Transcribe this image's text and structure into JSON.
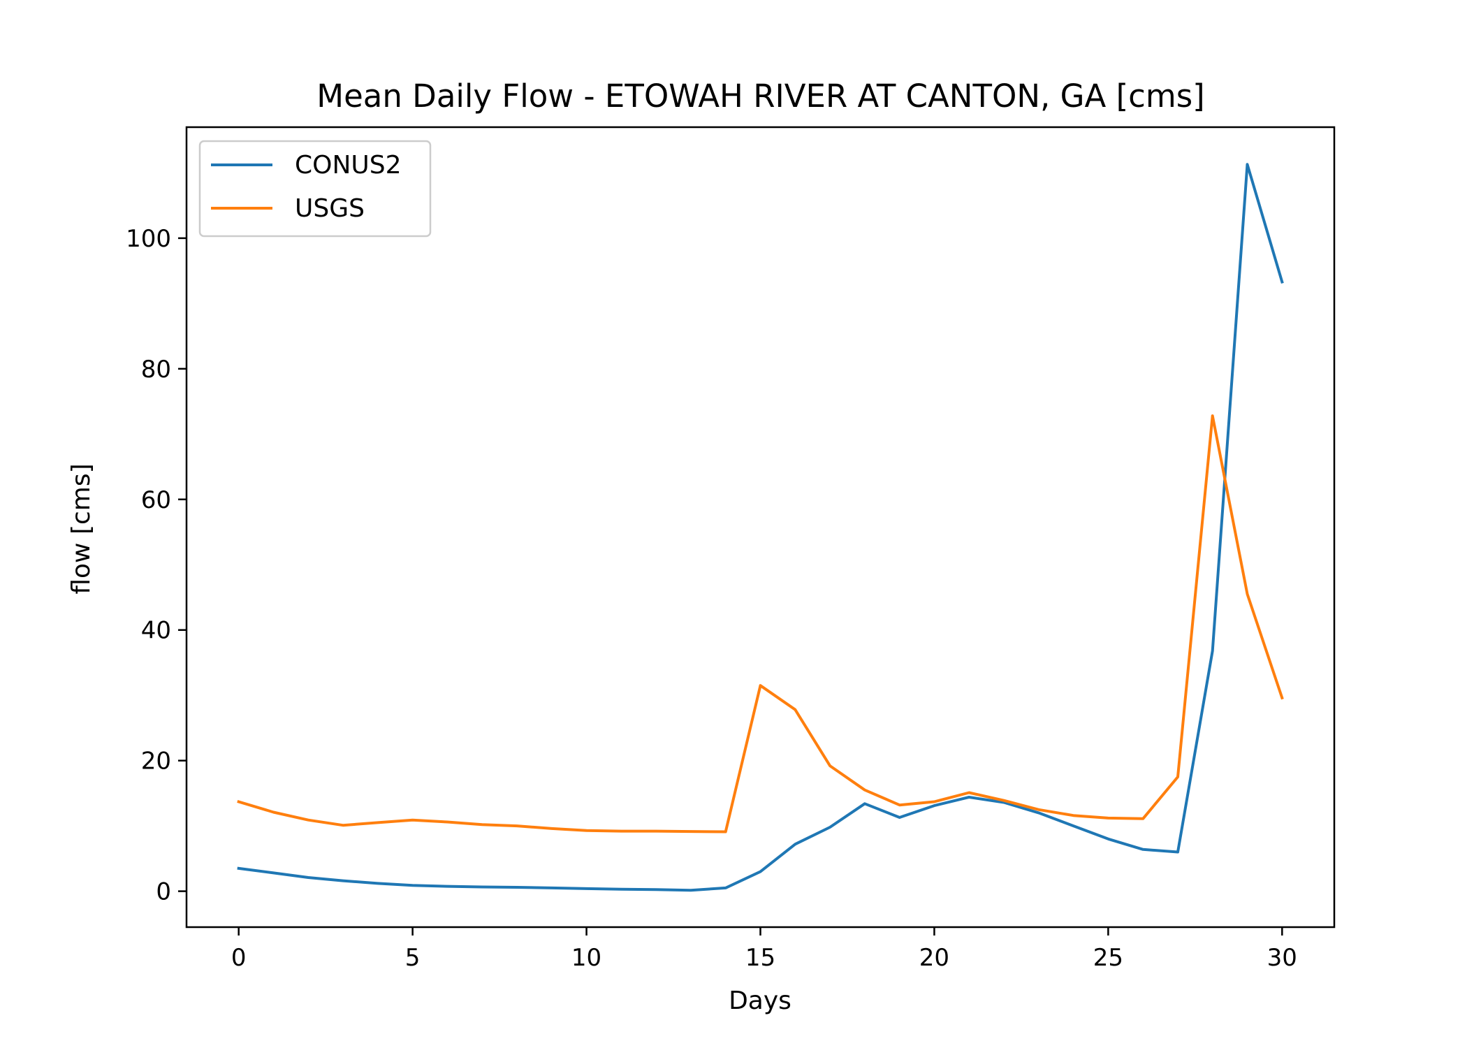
{
  "chart_data": {
    "type": "line",
    "title": "Mean Daily Flow - ETOWAH RIVER AT CANTON, GA [cms]",
    "xlabel": "Days",
    "ylabel": "flow [cms]",
    "xlim": [
      -1.5,
      31.5
    ],
    "ylim": [
      -5.5,
      117
    ],
    "xticks": [
      0,
      5,
      10,
      15,
      20,
      25,
      30
    ],
    "xtick_labels": [
      "0",
      "5",
      "10",
      "15",
      "20",
      "25",
      "30"
    ],
    "yticks": [
      0,
      20,
      40,
      60,
      80,
      100
    ],
    "ytick_labels": [
      "0",
      "20",
      "40",
      "60",
      "80",
      "100"
    ],
    "grid": false,
    "legend_position": "upper-left",
    "x": [
      0,
      1,
      2,
      3,
      4,
      5,
      6,
      7,
      8,
      9,
      10,
      11,
      12,
      13,
      14,
      15,
      16,
      17,
      18,
      19,
      20,
      21,
      22,
      23,
      24,
      25,
      26,
      27,
      28,
      29,
      30
    ],
    "series": [
      {
        "name": "CONUS2",
        "color": "#1f77b4",
        "values": [
          3.5,
          2.8,
          2.1,
          1.6,
          1.2,
          0.9,
          0.75,
          0.65,
          0.6,
          0.5,
          0.4,
          0.3,
          0.25,
          0.15,
          0.5,
          3.0,
          7.2,
          9.8,
          13.4,
          11.3,
          13.1,
          14.4,
          13.6,
          12.0,
          10.0,
          8.0,
          6.4,
          6.0,
          36.8,
          111.3,
          93.3
        ]
      },
      {
        "name": "USGS",
        "color": "#ff7f0e",
        "values": [
          13.7,
          12.1,
          10.9,
          10.1,
          10.5,
          10.9,
          10.6,
          10.2,
          10.0,
          9.6,
          9.3,
          9.2,
          9.2,
          9.15,
          9.1,
          31.5,
          27.8,
          19.2,
          15.5,
          13.2,
          13.7,
          15.1,
          13.9,
          12.5,
          11.6,
          11.2,
          11.1,
          17.5,
          72.8,
          45.5,
          29.6
        ]
      }
    ]
  }
}
